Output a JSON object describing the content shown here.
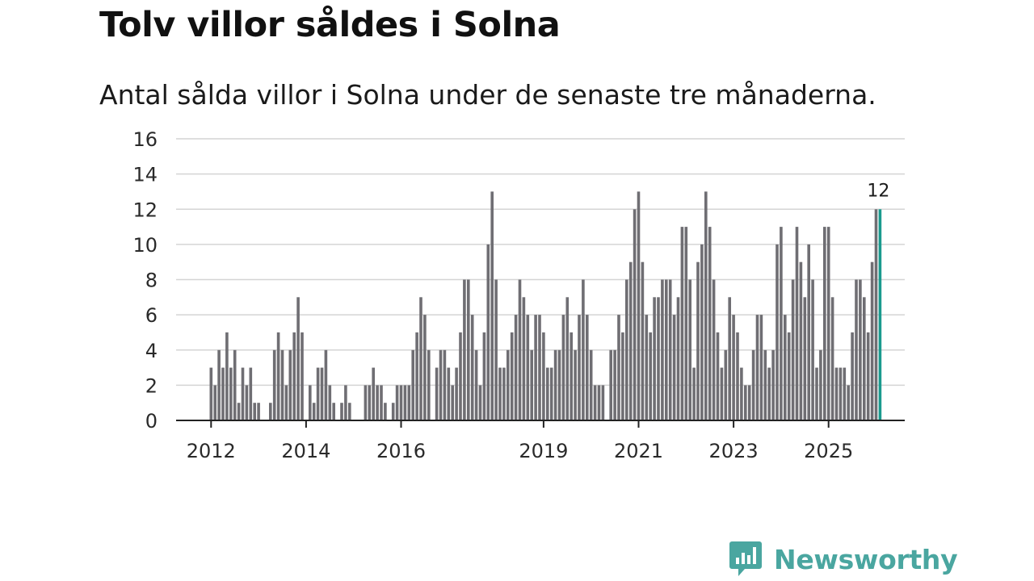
{
  "title": "Tolv villor såldes i Solna",
  "subtitle": "Antal sålda villor i Solna under de senaste tre månaderna.",
  "brand": {
    "name": "Newsworthy",
    "color": "#4aa6a0"
  },
  "chart_data": {
    "type": "bar",
    "title": "Tolv villor såldes i Solna",
    "subtitle": "Antal sålda villor i Solna under de senaste tre månaderna.",
    "xlabel": "",
    "ylabel": "",
    "ylim": [
      0,
      16
    ],
    "yticks": [
      0,
      2,
      4,
      6,
      8,
      10,
      12,
      14,
      16
    ],
    "grid": true,
    "x_tick_labels": [
      "2012",
      "2014",
      "2016",
      "2019",
      "2021",
      "2023",
      "2025"
    ],
    "bar_color": "#6f6e73",
    "highlight_color": "#1a9a8e",
    "highlight_label": "12",
    "series": [
      {
        "name": "Antal sålda villor",
        "values": [
          3,
          2,
          4,
          3,
          5,
          3,
          4,
          1,
          3,
          2,
          3,
          1,
          1,
          null,
          null,
          1,
          4,
          5,
          4,
          2,
          4,
          5,
          7,
          5,
          null,
          2,
          1,
          3,
          3,
          4,
          2,
          1,
          null,
          1,
          2,
          1,
          null,
          null,
          null,
          2,
          2,
          3,
          2,
          2,
          1,
          null,
          1,
          2,
          2,
          2,
          2,
          4,
          5,
          7,
          6,
          4,
          null,
          3,
          4,
          4,
          3,
          2,
          3,
          5,
          8,
          8,
          6,
          4,
          2,
          5,
          10,
          13,
          8,
          3,
          3,
          4,
          5,
          6,
          8,
          7,
          6,
          4,
          6,
          6,
          5,
          3,
          3,
          4,
          4,
          6,
          7,
          5,
          4,
          6,
          8,
          6,
          4,
          2,
          2,
          2,
          null,
          4,
          4,
          6,
          5,
          8,
          9,
          12,
          13,
          9,
          6,
          5,
          7,
          7,
          8,
          8,
          8,
          6,
          7,
          11,
          11,
          8,
          3,
          9,
          10,
          13,
          11,
          8,
          5,
          3,
          4,
          7,
          6,
          5,
          3,
          2,
          2,
          4,
          6,
          6,
          4,
          3,
          4,
          10,
          11,
          6,
          5,
          8,
          11,
          9,
          7,
          10,
          8,
          3,
          4,
          11,
          11,
          7,
          3,
          3,
          3,
          2,
          5,
          8,
          8,
          7,
          5,
          9,
          12,
          12
        ]
      }
    ]
  }
}
